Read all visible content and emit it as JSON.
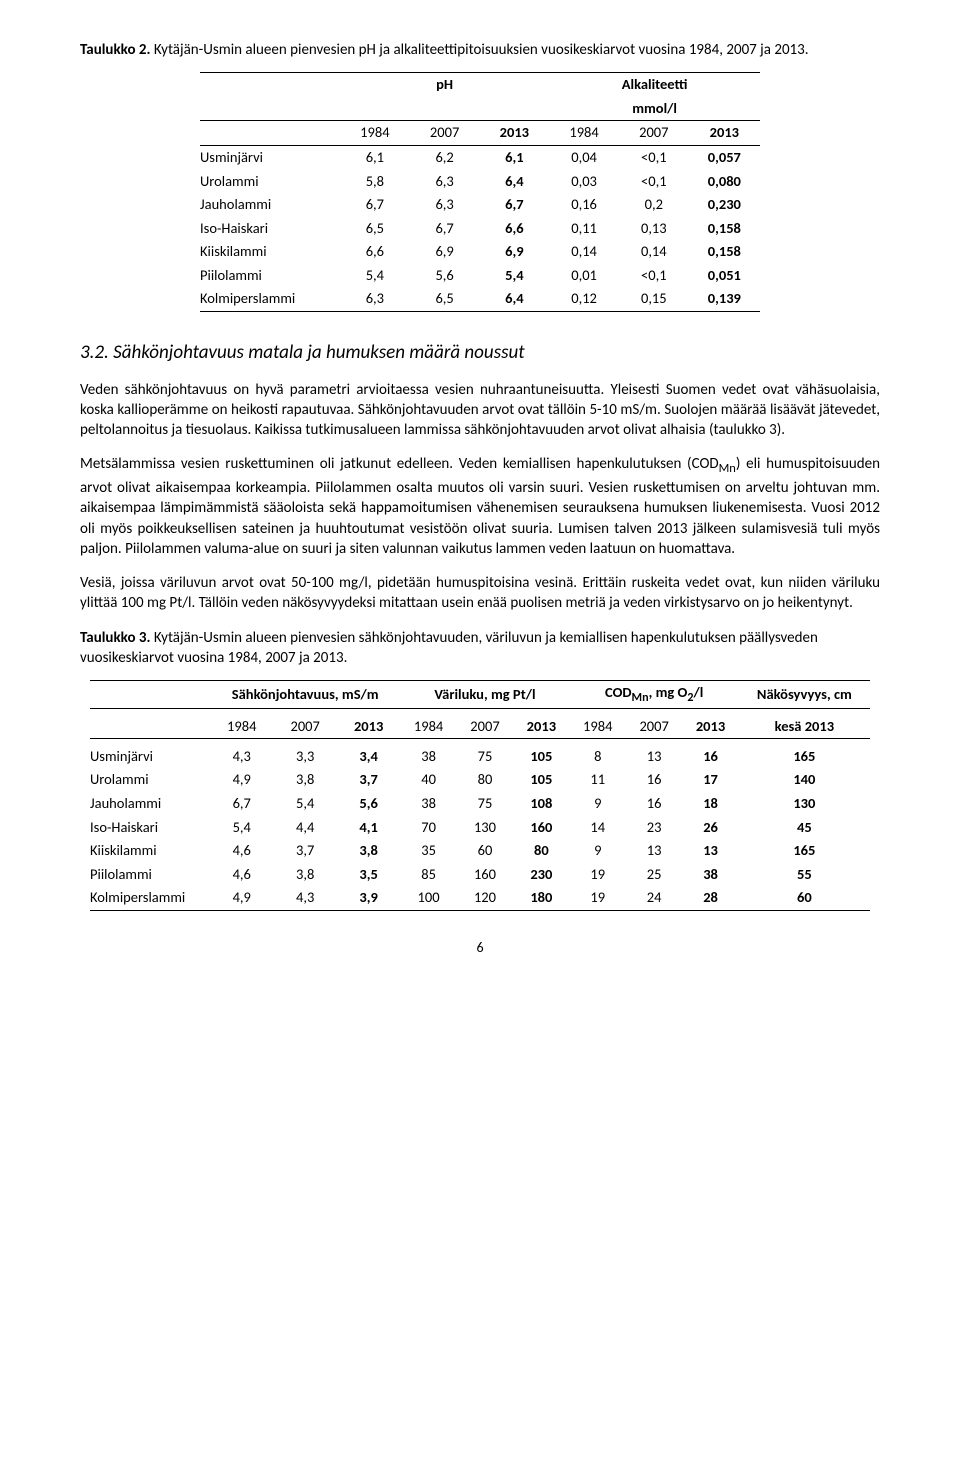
{
  "table1": {
    "caption_bold": "Taulukko 2.",
    "caption_rest": " Kytäjän-Usmin alueen pienvesien pH ja alkaliteettipitoisuuksien vuosikeskiarvot vuosina 1984, 2007 ja 2013.",
    "col_group1": "pH",
    "col_group2": "Alkaliteetti",
    "col_group2_sub": "mmol/l",
    "years1": [
      "1984",
      "2007",
      "2013"
    ],
    "years2": [
      "1984",
      "2007",
      "2013"
    ],
    "rows": [
      {
        "label": "Usminjärvi",
        "v": [
          "6,1",
          "6,2",
          "6,1",
          "0,04",
          "<0,1",
          "0,057"
        ]
      },
      {
        "label": "Urolammi",
        "v": [
          "5,8",
          "6,3",
          "6,4",
          "0,03",
          "<0,1",
          "0,080"
        ]
      },
      {
        "label": "Jauholammi",
        "v": [
          "6,7",
          "6,3",
          "6,7",
          "0,16",
          "0,2",
          "0,230"
        ]
      },
      {
        "label": "Iso-Haiskari",
        "v": [
          "6,5",
          "6,7",
          "6,6",
          "0,11",
          "0,13",
          "0,158"
        ]
      },
      {
        "label": "Kiiskilammi",
        "v": [
          "6,6",
          "6,9",
          "6,9",
          "0,14",
          "0,14",
          "0,158"
        ]
      },
      {
        "label": "Piilolammi",
        "v": [
          "5,4",
          "5,6",
          "5,4",
          "0,01",
          "<0,1",
          "0,051"
        ]
      },
      {
        "label": "Kolmiperslammi",
        "v": [
          "6,3",
          "6,5",
          "6,4",
          "0,12",
          "0,15",
          "0,139"
        ]
      }
    ]
  },
  "section": {
    "heading": "3.2.   Sähkönjohtavuus matala ja humuksen määrä noussut",
    "para1": "Veden sähkönjohtavuus on hyvä parametri arvioitaessa vesien nuhraantuneisuutta. Yleisesti Suomen vedet ovat vähäsuolaisia, koska kallioperämme on heikosti rapautuvaa. Sähkönjohtavuuden arvot ovat tällöin 5-10 mS/m. Suolojen määrää lisäävät jätevedet, peltolannoitus ja tiesuolaus. Kaikissa tutkimusalueen lammissa sähkönjohtavuuden arvot olivat alhaisia (taulukko 3).",
    "para2_a": "Metsälammissa vesien ruskettuminen oli jatkunut edelleen. Veden kemiallisen hapenkulutuksen (COD",
    "para2_sub": "Mn",
    "para2_b": ") eli humuspitoisuuden arvot olivat aikaisempaa korkeampia. Piilolammen osalta muutos oli varsin suuri. Vesien ruskettumisen on arveltu johtuvan mm. aikaisempaa lämpimämmistä sääoloista sekä happamoitumisen vähenemisen seurauksena humuksen liukenemisesta. Vuosi 2012 oli myös poikkeuksellisen sateinen ja huuhtoutumat vesistöön olivat suuria. Lumisen talven 2013 jälkeen sulamisvesiä tuli myös paljon. Piilolammen valuma-alue on suuri ja siten valunnan vaikutus lammen veden laatuun on huomattava.",
    "para3": "Vesiä, joissa väriluvun arvot ovat 50-100 mg/l, pidetään humuspitoisina vesinä. Erittäin ruskeita vedet ovat, kun niiden väriluku ylittää 100 mg Pt/l. Tällöin veden näkösyvyydeksi mitattaan usein enää puolisen metriä ja veden virkistysarvo on jo heikentynyt."
  },
  "table2": {
    "caption_bold": "Taulukko 3.",
    "caption_rest": " Kytäjän-Usmin alueen pienvesien sähkönjohtavuuden, väriluvun ja kemiallisen hapenkulutuksen päällysveden vuosikeskiarvot vuosina 1984, 2007 ja 2013.",
    "group_headers": [
      "Sähkönjohtavuus, mS/m",
      "Väriluku, mg Pt/l",
      "COD",
      "Näkösyvyys, cm"
    ],
    "cod_sub": "Mn",
    "cod_unit_a": ", mg O",
    "cod_unit_sub": "2",
    "cod_unit_b": "/l",
    "year_row": [
      "1984",
      "2007",
      "2013",
      "1984",
      "2007",
      "2013",
      "1984",
      "2007",
      "2013",
      "kesä 2013"
    ],
    "rows": [
      {
        "label": "Usminjärvi",
        "v": [
          "4,3",
          "3,3",
          "3,4",
          "38",
          "75",
          "105",
          "8",
          "13",
          "16",
          "165"
        ]
      },
      {
        "label": "Urolammi",
        "v": [
          "4,9",
          "3,8",
          "3,7",
          "40",
          "80",
          "105",
          "11",
          "16",
          "17",
          "140"
        ]
      },
      {
        "label": "Jauholammi",
        "v": [
          "6,7",
          "5,4",
          "5,6",
          "38",
          "75",
          "108",
          "9",
          "16",
          "18",
          "130"
        ]
      },
      {
        "label": "Iso-Haiskari",
        "v": [
          "5,4",
          "4,4",
          "4,1",
          "70",
          "130",
          "160",
          "14",
          "23",
          "26",
          "45"
        ]
      },
      {
        "label": "Kiiskilammi",
        "v": [
          "4,6",
          "3,7",
          "3,8",
          "35",
          "60",
          "80",
          "9",
          "13",
          "13",
          "165"
        ]
      },
      {
        "label": "Piilolammi",
        "v": [
          "4,6",
          "3,8",
          "3,5",
          "85",
          "160",
          "230",
          "19",
          "25",
          "38",
          "55"
        ]
      },
      {
        "label": "Kolmiperslammi",
        "v": [
          "4,9",
          "4,3",
          "3,9",
          "100",
          "120",
          "180",
          "19",
          "24",
          "28",
          "60"
        ]
      }
    ]
  },
  "page_number": "6"
}
